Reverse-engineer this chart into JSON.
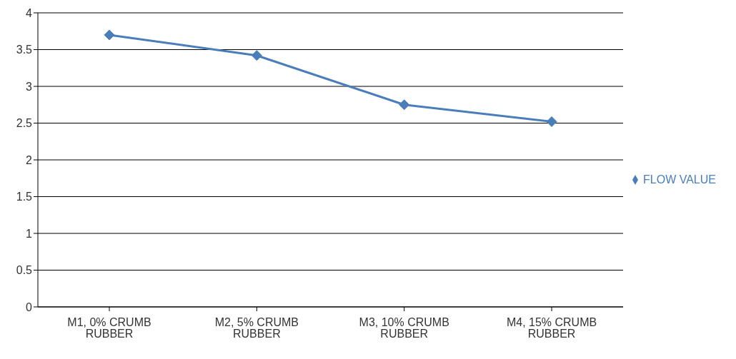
{
  "chart_data": {
    "type": "line",
    "categories": [
      "M1, 0% CRUMB RUBBER",
      "M2, 5% CRUMB RUBBER",
      "M3, 10% CRUMB RUBBER",
      "M4, 15% CRUMB RUBBER"
    ],
    "series": [
      {
        "name": "FLOW VALUE",
        "color": "#4a7ebb",
        "values": [
          3.7,
          3.42,
          2.75,
          2.52
        ]
      }
    ],
    "ylim": [
      0,
      4
    ],
    "yticks": [
      0,
      0.5,
      1,
      1.5,
      2,
      2.5,
      3,
      3.5,
      4
    ],
    "grid": "y",
    "legend": "right",
    "marker": "diamond",
    "line_style": "solid"
  }
}
